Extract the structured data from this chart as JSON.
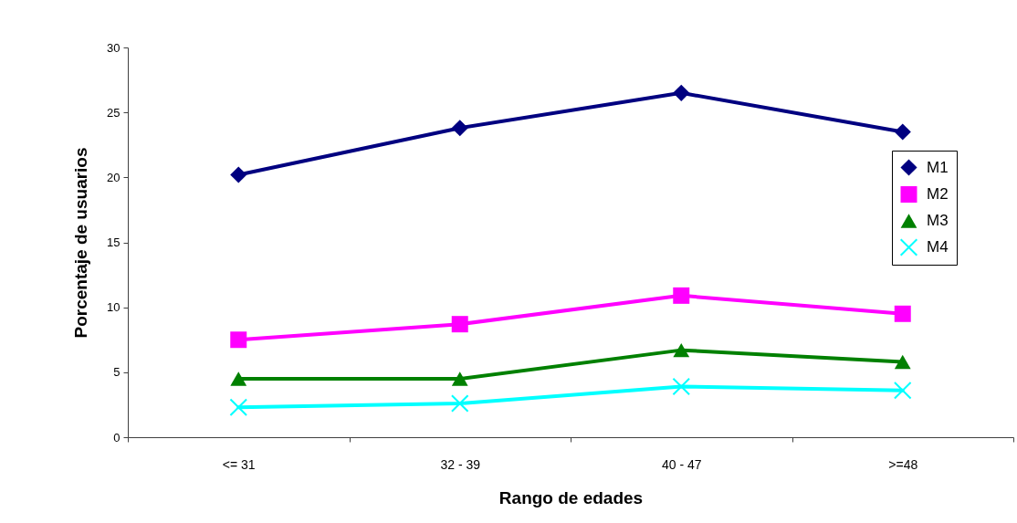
{
  "chart_data": {
    "type": "line",
    "xlabel": "Rango de edades",
    "ylabel": "Porcentaje de usuarios",
    "categories": [
      "<= 31",
      "32 - 39",
      "40 - 47",
      ">=48"
    ],
    "series": [
      {
        "name": "M1",
        "color": "#000080",
        "marker": "diamond",
        "values": [
          20.2,
          23.8,
          26.5,
          23.5
        ]
      },
      {
        "name": "M2",
        "color": "#ff00ff",
        "marker": "square",
        "values": [
          7.5,
          8.7,
          10.9,
          9.5
        ]
      },
      {
        "name": "M3",
        "color": "#008000",
        "marker": "triangle",
        "values": [
          4.5,
          4.5,
          6.7,
          5.8
        ]
      },
      {
        "name": "M4",
        "color": "#00ffff",
        "marker": "cross",
        "values": [
          2.3,
          2.6,
          3.9,
          3.6
        ]
      }
    ],
    "ylim": [
      0,
      30
    ],
    "yticks": [
      0,
      5,
      10,
      15,
      20,
      25,
      30
    ],
    "legend": "right",
    "line_style": "solid"
  }
}
